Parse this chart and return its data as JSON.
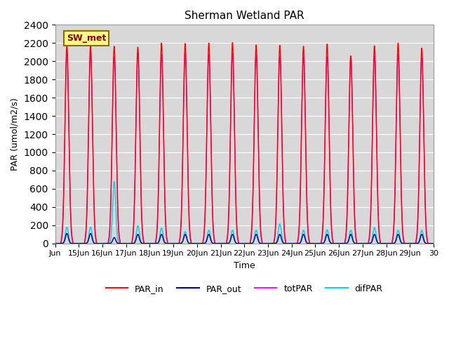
{
  "title": "Sherman Wetland PAR",
  "ylabel": "PAR (umol/m2/s)",
  "xlabel": "Time",
  "ylim": [
    0,
    2400
  ],
  "yticks": [
    0,
    200,
    400,
    600,
    800,
    1000,
    1200,
    1400,
    1600,
    1800,
    2000,
    2200,
    2400
  ],
  "bg_color": "#d8d8d8",
  "fig_bg": "#ffffff",
  "annotation_text": "SW_met",
  "annotation_bg": "#ffff88",
  "annotation_border": "#8B6914",
  "lines": {
    "PAR_in": {
      "color": "#ff0000",
      "lw": 1.0
    },
    "PAR_out": {
      "color": "#000080",
      "lw": 1.0
    },
    "totPAR": {
      "color": "#ff00ff",
      "lw": 1.0
    },
    "difPAR": {
      "color": "#00ccee",
      "lw": 1.0
    }
  },
  "n_days": 16,
  "start_day": 14,
  "peak_PAR_in": [
    2180,
    2180,
    2165,
    2155,
    2200,
    2195,
    2200,
    2205,
    2180,
    2175,
    2165,
    2190,
    2060,
    2170,
    2200,
    2145
  ],
  "peak_totPAR": [
    2090,
    2090,
    2050,
    2095,
    2075,
    2090,
    2075,
    2085,
    2075,
    2055,
    2045,
    2050,
    2045,
    2055,
    2075,
    2045
  ],
  "peak_PAR_out": [
    110,
    110,
    65,
    100,
    100,
    100,
    100,
    100,
    100,
    100,
    100,
    100,
    100,
    100,
    100,
    100
  ],
  "peak_difPAR": [
    180,
    180,
    680,
    195,
    170,
    130,
    145,
    145,
    145,
    215,
    145,
    150,
    145,
    175,
    145,
    145
  ],
  "sigma_in": 0.08,
  "sigma_tot": 0.085,
  "sigma_out": 0.06,
  "sigma_dif": 0.065
}
